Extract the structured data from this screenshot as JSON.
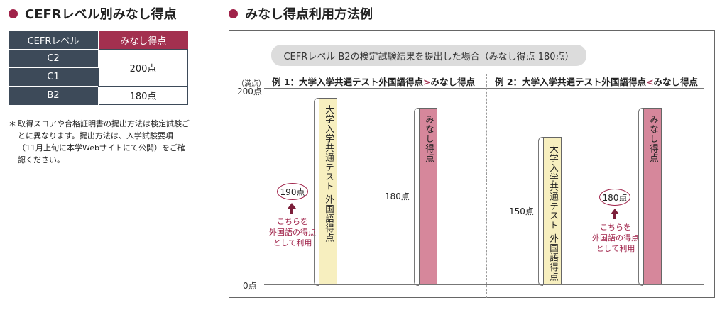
{
  "left": {
    "heading": "CEFRレベル別みなし得点",
    "table": {
      "header_level": "CEFRレベル",
      "header_score": "みなし得点",
      "rows": [
        {
          "level": "C2",
          "score": "200点"
        },
        {
          "level": "C1",
          "score": "200点"
        },
        {
          "level": "B2",
          "score": "180点"
        }
      ]
    },
    "note_mark": "＊",
    "note": "取得スコアや合格証明書の提出方法は検定試験ごとに異なります。提出方法は、入学試験要項（11月上旬に本学Webサイトにて公開）をご確認ください。"
  },
  "right": {
    "heading": "みなし得点利用方法例",
    "banner": "CEFRレベル B2の検定試験結果を提出した場合（みなし得点 180点）",
    "unit_label": "（満点）",
    "y_top": "200点",
    "y_bottom": "0点",
    "example1": {
      "title_pre": "例 1：大学入学共通テスト外国語得点",
      "title_mark": ">",
      "title_post": "みなし得点",
      "bar1_label": "大学入学共通テスト 外国語得点",
      "bar1_value": "190点",
      "bar2_label": "みなし得点",
      "bar2_value": "180点",
      "callout": [
        "こちらを",
        "外国語の得点",
        "として利用"
      ]
    },
    "example2": {
      "title_pre": "例 2：大学入学共通テスト外国語得点",
      "title_mark": "<",
      "title_post": "みなし得点",
      "bar1_label": "大学入学共通テスト 外国語得点",
      "bar1_value": "150点",
      "bar2_label": "みなし得点",
      "bar2_value": "180点",
      "callout": [
        "こちらを",
        "外国語の得点",
        "として利用"
      ]
    }
  },
  "chart_data": {
    "type": "bar",
    "ylim": [
      0,
      200
    ],
    "series": [
      {
        "name": "例 1",
        "categories": [
          "大学入学共通テスト 外国語得点",
          "みなし得点"
        ],
        "values": [
          190,
          180
        ]
      },
      {
        "name": "例 2",
        "categories": [
          "大学入学共通テスト 外国語得点",
          "みなし得点"
        ],
        "values": [
          150,
          180
        ]
      }
    ],
    "colors": {
      "common_test": "#f7efbf",
      "minashi": "#d6879b",
      "accent": "#a0234a"
    }
  }
}
